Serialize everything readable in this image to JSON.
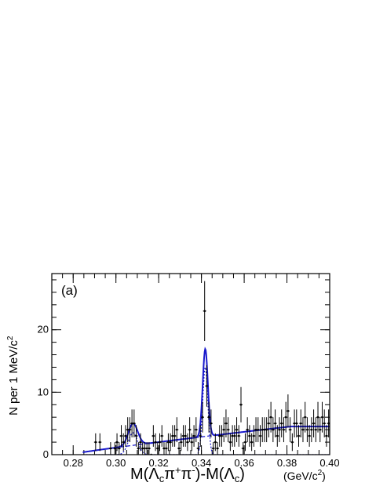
{
  "chart_data": {
    "type": "scatter",
    "panel_label": "(a)",
    "ylabel": {
      "text": "N per 1 MeV/c",
      "sup": "2"
    },
    "xlabel": {
      "parts": [
        {
          "t": "M(",
          "s": ""
        },
        {
          "t": "Λ",
          "s": ""
        },
        {
          "t": "c",
          "s": "sub"
        },
        {
          "t": "π",
          "s": ""
        },
        {
          "t": "+",
          "s": "sup"
        },
        {
          "t": "π",
          "s": ""
        },
        {
          "t": "-",
          "s": "sup"
        },
        {
          "t": ")-M(",
          "s": ""
        },
        {
          "t": "Λ",
          "s": ""
        },
        {
          "t": "c",
          "s": "sub"
        },
        {
          "t": ")",
          "s": ""
        }
      ]
    },
    "xunit": {
      "text": "(GeV/c",
      "sup": "2",
      "close": ")"
    },
    "xlim": [
      0.27,
      0.4
    ],
    "ylim": [
      0,
      29
    ],
    "xticks": [
      0.28,
      0.3,
      0.32,
      0.34,
      0.36,
      0.38,
      0.4
    ],
    "xtick_labels": [
      "0.28",
      "0.30",
      "0.32",
      "0.34",
      "0.36",
      "0.38",
      "0.40"
    ],
    "yticks": [
      0,
      10,
      20
    ],
    "ytick_labels": [
      "0",
      "10",
      "20"
    ],
    "x_minor_step": 0.005,
    "y_minor_step": 2,
    "series": [
      {
        "kind": "data_points",
        "x": [
          0.2905,
          0.2925,
          0.2975,
          0.2995,
          0.3005,
          0.3015,
          0.3025,
          0.3035,
          0.3045,
          0.3055,
          0.3065,
          0.3075,
          0.3085,
          0.3095,
          0.3105,
          0.3115,
          0.3125,
          0.3135,
          0.3145,
          0.3155,
          0.3165,
          0.3175,
          0.3185,
          0.3195,
          0.3205,
          0.3215,
          0.3225,
          0.3235,
          0.3245,
          0.3255,
          0.3265,
          0.3275,
          0.3285,
          0.3295,
          0.3305,
          0.3315,
          0.3325,
          0.3335,
          0.3345,
          0.3355,
          0.3365,
          0.3375,
          0.3385,
          0.3395,
          0.3405,
          0.3415,
          0.3425,
          0.3435,
          0.3445,
          0.3455,
          0.3465,
          0.3475,
          0.3485,
          0.3495,
          0.3505,
          0.3515,
          0.3525,
          0.3535,
          0.3545,
          0.3555,
          0.3565,
          0.3575,
          0.3585,
          0.3595,
          0.3605,
          0.3615,
          0.3625,
          0.3635,
          0.3645,
          0.3655,
          0.3665,
          0.3675,
          0.3685,
          0.3695,
          0.3705,
          0.3715,
          0.3725,
          0.3735,
          0.3745,
          0.3755,
          0.3765,
          0.3775,
          0.3785,
          0.3795,
          0.3805,
          0.3815,
          0.3825,
          0.3835,
          0.3845,
          0.3855,
          0.3865,
          0.3875,
          0.3885,
          0.3895,
          0.3905,
          0.3915,
          0.3925,
          0.3935,
          0.3945,
          0.3955,
          0.3965,
          0.3975,
          0.3985,
          0.3995
        ],
        "y": [
          2,
          2,
          1,
          1,
          2,
          1,
          3,
          2,
          3,
          4,
          4,
          5,
          5,
          3,
          1,
          2,
          1,
          1,
          1,
          1,
          0,
          3,
          2,
          1,
          2,
          3,
          1,
          1,
          2,
          2,
          3,
          3,
          4,
          1,
          2,
          3,
          3,
          2,
          4,
          2,
          3,
          4,
          1,
          3,
          6,
          23,
          11,
          6,
          5,
          1,
          2,
          1,
          3,
          3,
          4,
          5,
          4,
          2,
          3,
          3,
          4,
          3,
          8,
          1,
          2,
          4,
          3,
          2,
          3,
          4,
          4,
          3,
          4,
          4,
          4,
          5,
          6,
          4,
          5,
          3,
          4,
          5,
          4,
          6,
          7,
          4,
          2,
          5,
          5,
          3,
          5,
          4,
          6,
          4,
          3,
          4,
          5,
          4,
          6,
          4,
          6,
          5,
          3,
          5
        ],
        "color": "#000000"
      },
      {
        "kind": "fit_total",
        "color": "#1a1acc"
      },
      {
        "kind": "fit_background",
        "color": "#1a1acc"
      },
      {
        "kind": "fit_signal",
        "color": "#1a1acc"
      }
    ],
    "fit": {
      "background": {
        "threshold": 0.2797,
        "a": 0.0,
        "b": 0.545,
        "c": 5.2,
        "floor": 0.1,
        "cap": 4.5
      },
      "peaks": [
        {
          "mean": 0.308,
          "sigma": 0.0022,
          "amplitude": 3.5
        },
        {
          "mean": 0.3418,
          "sigma": 0.0012,
          "amplitude": 14.0
        }
      ],
      "x_range": [
        0.2845,
        0.4
      ]
    }
  }
}
